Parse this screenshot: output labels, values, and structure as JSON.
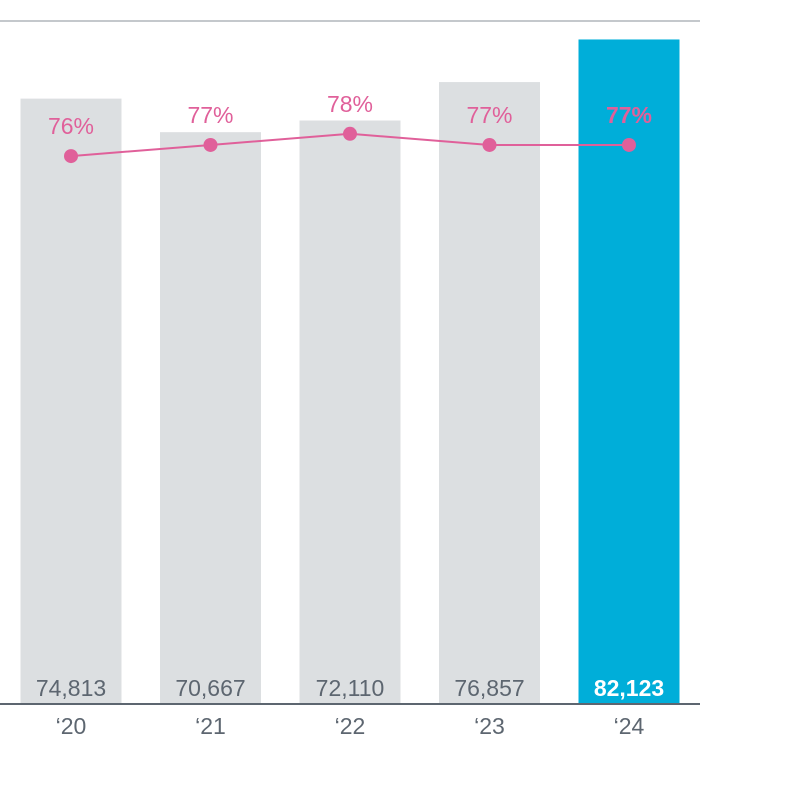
{
  "chart_data": {
    "type": "bar",
    "categories": [
      "‘20",
      "‘21",
      "‘22",
      "‘23",
      "‘24"
    ],
    "series": [
      {
        "values": [
          74813,
          70667,
          72110,
          76857,
          82123
        ],
        "labels": [
          "74,813",
          "70,667",
          "72,110",
          "76,857",
          "82,123"
        ]
      }
    ],
    "line_series": [
      {
        "values": [
          76,
          77,
          78,
          77,
          77
        ],
        "labels": [
          "76%",
          "77%",
          "78%",
          "77%",
          "77%"
        ]
      }
    ],
    "highlight_index": 4,
    "ylim": [
      0,
      87000
    ],
    "line_ylim": [
      70,
      90
    ],
    "grid": false,
    "colors": {
      "bar": "#dcdfe1",
      "bar_highlight": "#00aed9",
      "bar_label": "#5d6670",
      "bar_label_highlight": "#ffffff",
      "line": "#e0609a",
      "axis": "#5d6670",
      "top_rule": "#8a9198"
    }
  }
}
